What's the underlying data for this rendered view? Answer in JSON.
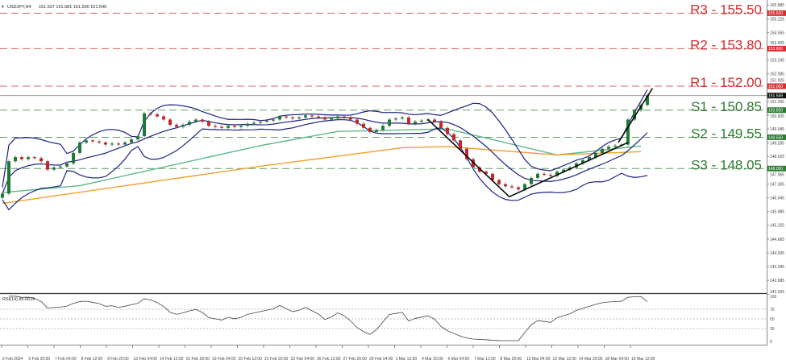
{
  "header": {
    "symbol": "USDJPY,H4",
    "quote": "151.537 151.581 151.500 151.549"
  },
  "rsi_label": "RSI(14) 85.6615",
  "chart_data": {
    "type": "candlestick",
    "title": "USDJPY,H4",
    "ylim": [
      142.025,
      155.885
    ],
    "y_ticks": [
      "155.885",
      "155.225",
      "154.565",
      "153.905",
      "153.245",
      "152.585",
      "151.925",
      "151.265",
      "150.605",
      "149.945",
      "149.285",
      "148.625",
      "147.965",
      "147.305",
      "146.645",
      "145.985",
      "145.325",
      "144.665",
      "144.005",
      "143.345",
      "142.685",
      "142.025"
    ],
    "x_ticks": [
      "2 Feb 2024",
      "5 Feb 20:00",
      "7 Feb 04:00",
      "8 Feb 12:00",
      "9 Feb 20:00",
      "13 Feb 04:00",
      "14 Feb 12:00",
      "15 Feb 20:00",
      "19 Feb 04:00",
      "20 Feb 12:00",
      "21 Feb 20:00",
      "23 Feb 04:00",
      "26 Feb 12:00",
      "27 Feb 20:00",
      "29 Feb 04:00",
      "1 Mar 12:00",
      "4 Mar 20:00",
      "6 Mar 04:00",
      "7 Mar 12:00",
      "8 Mar 20:00",
      "12 Mar 04:00",
      "13 Mar 12:00",
      "14 Mar 20:00",
      "18 Mar 04:00",
      "19 Mar 12:00"
    ],
    "closes": [
      146.85,
      148.4,
      148.6,
      148.5,
      148.6,
      148.55,
      148.4,
      148.0,
      148.1,
      148.15,
      148.3,
      148.8,
      149.3,
      149.4,
      149.35,
      149.3,
      149.2,
      149.25,
      149.2,
      149.3,
      149.45,
      149.6,
      150.7,
      150.65,
      150.55,
      150.4,
      150.15,
      150.05,
      150.15,
      150.3,
      150.4,
      150.3,
      150.1,
      150.05,
      150.0,
      150.1,
      150.05,
      150.1,
      150.2,
      150.25,
      150.3,
      150.35,
      150.4,
      150.55,
      150.5,
      150.45,
      150.5,
      150.6,
      150.55,
      150.5,
      150.4,
      150.45,
      150.55,
      150.5,
      150.4,
      150.2,
      150.0,
      149.8,
      149.9,
      150.1,
      150.4,
      150.45,
      150.5,
      150.2,
      150.3,
      150.35,
      150.4,
      150.3,
      150.0,
      149.7,
      149.4,
      149.0,
      148.5,
      148.1,
      147.9,
      147.8,
      147.5,
      147.3,
      147.2,
      147.15,
      147.05,
      147.3,
      147.6,
      147.8,
      147.75,
      147.7,
      147.9,
      148.0,
      148.1,
      148.3,
      148.45,
      148.6,
      148.8,
      149.0,
      149.1,
      149.15,
      149.2,
      150.4,
      150.85,
      151.1,
      151.55
    ],
    "current_price": 151.549,
    "moving_average_green": [
      [
        0,
        146.9
      ],
      [
        12,
        147.23
      ],
      [
        40,
        149.15
      ],
      [
        52,
        149.83
      ],
      [
        69,
        149.95
      ],
      [
        76,
        149.44
      ],
      [
        86,
        148.7
      ],
      [
        99,
        149.13
      ]
    ],
    "moving_average_orange": [
      [
        0,
        146.38
      ],
      [
        40,
        148.16
      ],
      [
        62,
        149.05
      ],
      [
        69,
        149.1
      ],
      [
        76,
        148.94
      ],
      [
        86,
        148.7
      ],
      [
        99,
        148.86
      ]
    ],
    "bollinger": {
      "period": 10,
      "deviations": 2
    },
    "rsi": {
      "period": 14,
      "value": 85.6615,
      "levels": [
        70,
        50,
        30
      ],
      "ylim": [
        0,
        100
      ]
    },
    "levels": [
      {
        "name": "R3",
        "label": "R3 - 155.50",
        "price": 155.5,
        "tag": "155.500",
        "color": "#d32f2f"
      },
      {
        "name": "R2",
        "label": "R2 - 153.80",
        "price": 153.8,
        "tag": "153.800",
        "color": "#d32f2f"
      },
      {
        "name": "R1",
        "label": "R1 - 152.00",
        "price": 152.0,
        "tag": "152.000",
        "color": "#d32f2f"
      },
      {
        "name": "S1",
        "label": "S1 - 150.85",
        "price": 150.85,
        "tag": "150.850",
        "color": "#2e7d32"
      },
      {
        "name": "S2",
        "label": "S2 - 149.55",
        "price": 149.55,
        "tag": "149.550",
        "color": "#2e7d32"
      },
      {
        "name": "S3",
        "label": "S3 - 148.05",
        "price": 148.05,
        "tag": "148.050",
        "color": "#2e7d32"
      }
    ],
    "current_tag": "151.549",
    "trendlines": [
      {
        "from": [
          66,
          150.4
        ],
        "to": [
          78.6,
          146.7
        ]
      },
      {
        "from": [
          78.6,
          146.7
        ],
        "to": [
          97,
          149.3
        ]
      },
      {
        "from": [
          95.5,
          149.3
        ],
        "to": [
          100.8,
          151.9
        ]
      }
    ],
    "colors": {
      "up": "#1e7b34",
      "down": "#c62828",
      "band": "#1a237e",
      "ma_green": "#5cb88a",
      "ma_orange": "#f0a030"
    }
  }
}
